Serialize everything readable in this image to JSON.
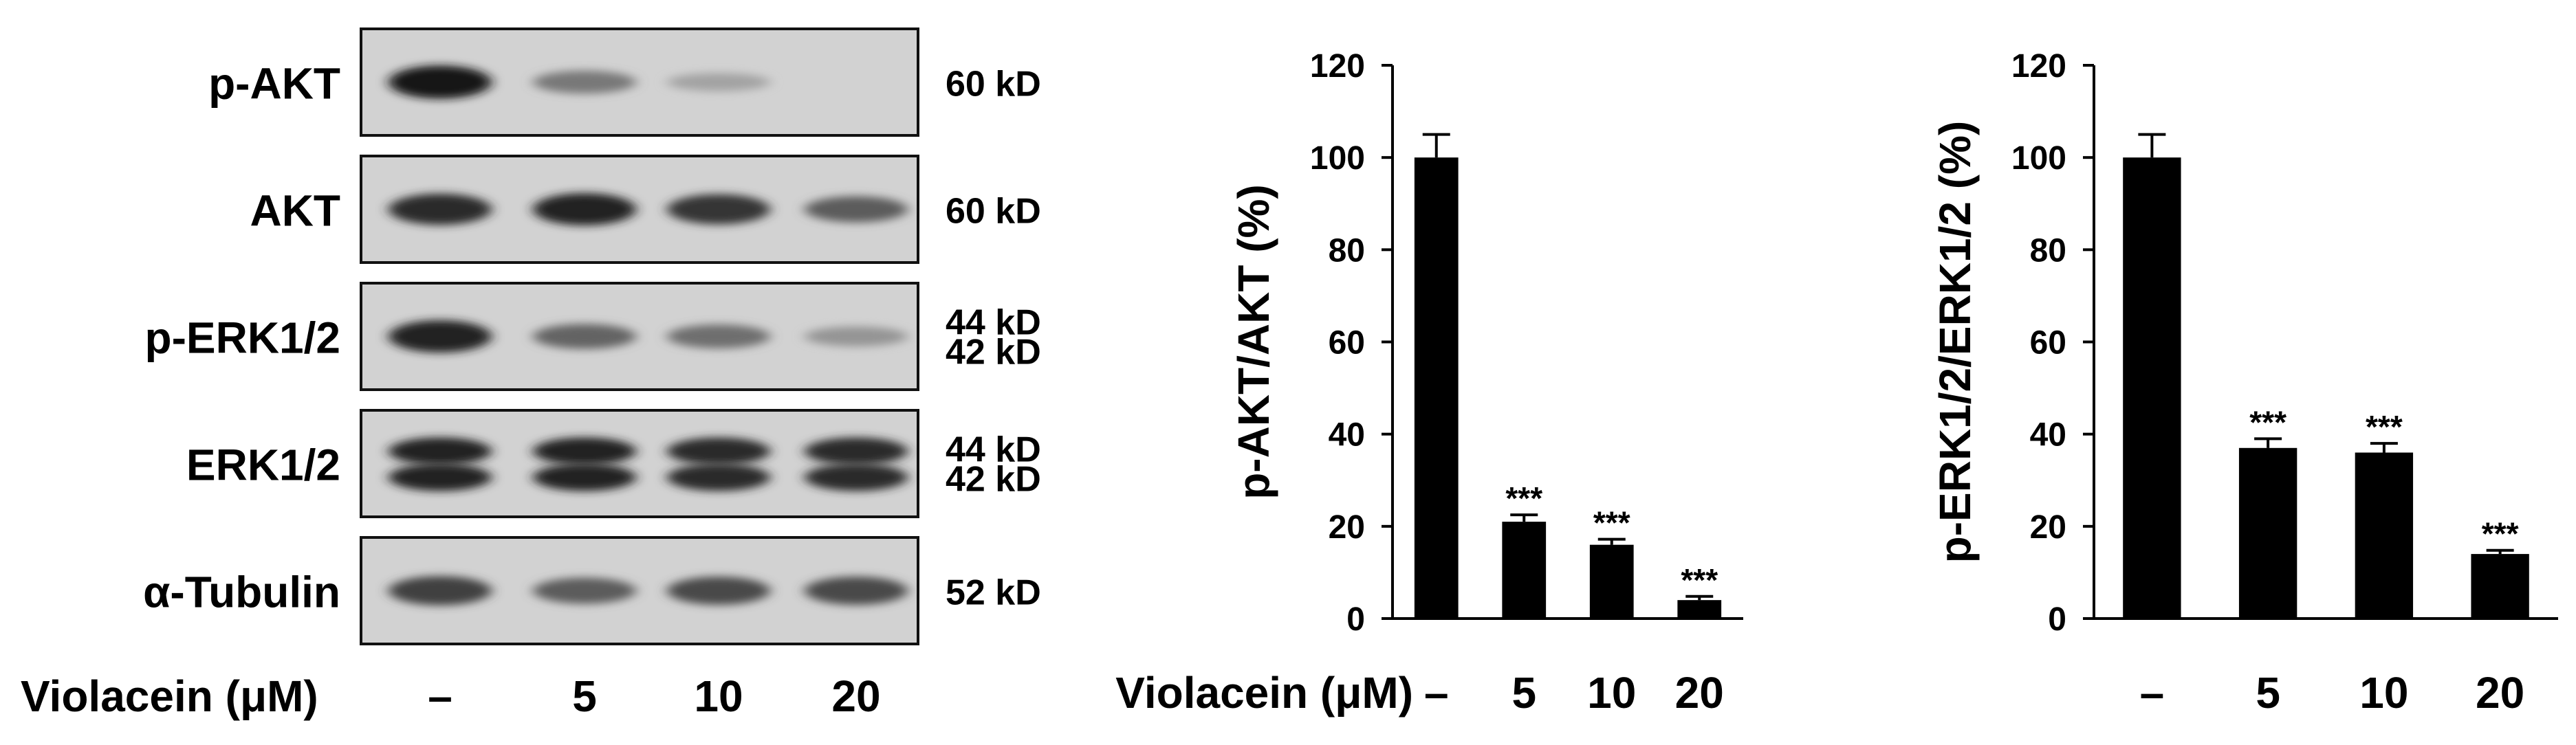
{
  "blot": {
    "rows": [
      {
        "label": "p-AKT",
        "markers": [
          "60 kD"
        ],
        "bands": [
          0.95,
          0.45,
          0.22,
          0.0
        ],
        "doublet": false
      },
      {
        "label": "AKT",
        "markers": [
          "60 kD"
        ],
        "bands": [
          0.85,
          0.9,
          0.8,
          0.6
        ],
        "doublet": false
      },
      {
        "label": "p-ERK1/2",
        "markers": [
          "44 kD",
          "42 kD"
        ],
        "bands": [
          0.9,
          0.55,
          0.5,
          0.3
        ],
        "doublet": false
      },
      {
        "label": "ERK1/2",
        "markers": [
          "44 kD",
          "42 kD"
        ],
        "bands": [
          0.9,
          0.9,
          0.85,
          0.85
        ],
        "doublet": true
      },
      {
        "label": "α-Tubulin",
        "markers": [
          "52 kD"
        ],
        "bands": [
          0.75,
          0.6,
          0.7,
          0.7
        ],
        "doublet": false
      }
    ],
    "treatment_label": "Violacein (μM)",
    "lanes": [
      "–",
      "5",
      "10",
      "20"
    ]
  },
  "chart_data": [
    {
      "type": "bar",
      "ylabel": "p-AKT/AKT (%)",
      "xlabel": "Violacein (μM)",
      "categories": [
        "–",
        "5",
        "10",
        "20"
      ],
      "values": [
        100,
        21,
        16,
        4
      ],
      "errors": [
        5,
        1.5,
        1.2,
        0.8
      ],
      "significance": [
        "",
        "***",
        "***",
        "***"
      ],
      "ylim": [
        0,
        120
      ],
      "yticks": [
        0,
        20,
        40,
        60,
        80,
        100,
        120
      ],
      "color": "#000000"
    },
    {
      "type": "bar",
      "ylabel": "p-ERK1/2/ERK1/2 (%)",
      "xlabel": "",
      "categories": [
        "–",
        "5",
        "10",
        "20"
      ],
      "values": [
        100,
        37,
        36,
        14
      ],
      "errors": [
        5,
        2,
        2,
        0.8
      ],
      "significance": [
        "",
        "***",
        "***",
        "***"
      ],
      "ylim": [
        0,
        120
      ],
      "yticks": [
        0,
        20,
        40,
        60,
        80,
        100,
        120
      ],
      "color": "#000000"
    }
  ]
}
